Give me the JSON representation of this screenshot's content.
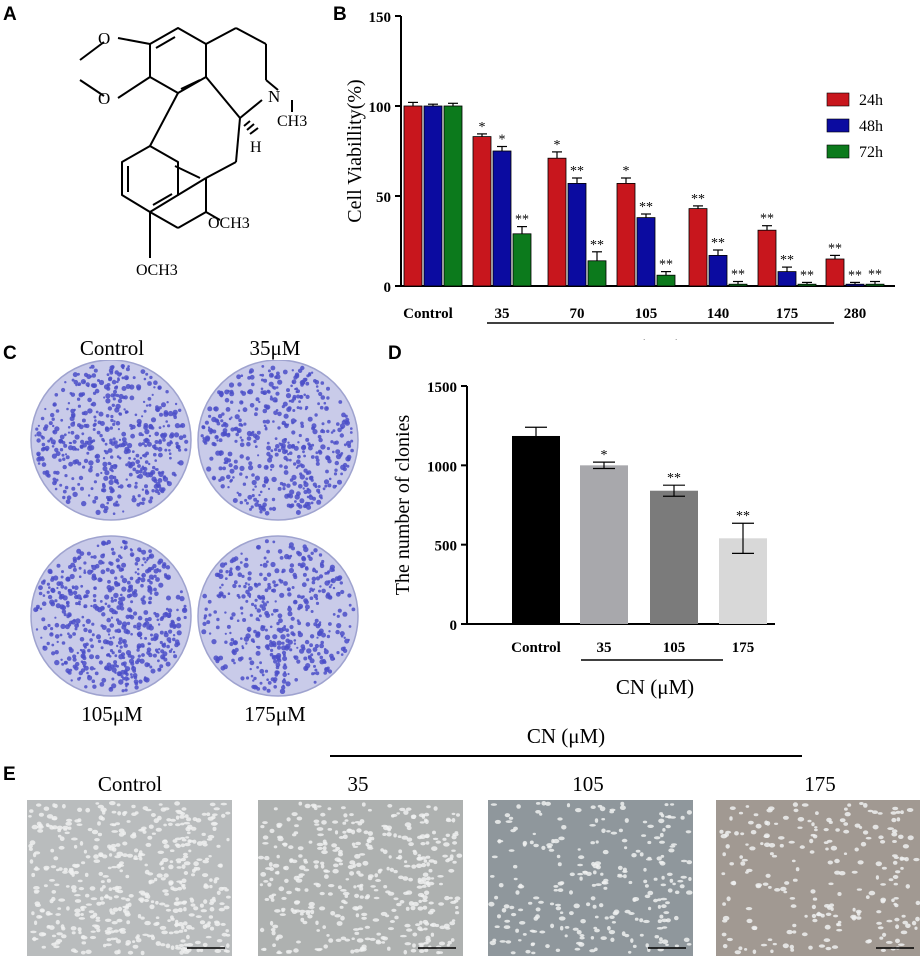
{
  "panels": {
    "a": {
      "letter": "A"
    },
    "b": {
      "letter": "B"
    },
    "c": {
      "letter": "C"
    },
    "d": {
      "letter": "D"
    },
    "e": {
      "letter": "E"
    }
  },
  "structure": {
    "labels": [
      "N",
      "CH3",
      "H",
      "OCH3",
      "OCH3",
      "O",
      "O"
    ]
  },
  "colors": {
    "h24": "#c8161d",
    "h48": "#0b0ba0",
    "h72": "#0c7a1c",
    "bar_control": "#000000",
    "bar_35": "#a8a8ac",
    "bar_105": "#7b7b7b",
    "bar_175": "#d8d8d8",
    "crystal_violet": "#4b4fc8"
  },
  "chart_data": [
    {
      "type": "bar",
      "panel": "B",
      "title": "",
      "ylabel": "Cell Viabillity(%)",
      "xlabel": "CN (μM)",
      "ylim": [
        0,
        150
      ],
      "yticks": [
        0,
        50,
        100,
        150
      ],
      "categories": [
        "Control",
        "35",
        "70",
        "105",
        "140",
        "175",
        "280"
      ],
      "legend_position": "top-right",
      "series": [
        {
          "name": "24h",
          "values": [
            100,
            83,
            71,
            57,
            43,
            31,
            15
          ],
          "errors": [
            2,
            1.5,
            3.5,
            3,
            1.5,
            2.5,
            2
          ],
          "sig": [
            "",
            "*",
            "*",
            "*",
            "**",
            "**",
            "**"
          ]
        },
        {
          "name": "48h",
          "values": [
            100,
            75,
            57,
            38,
            17,
            8,
            1
          ],
          "errors": [
            1,
            2.5,
            3,
            2,
            3,
            2.5,
            1
          ],
          "sig": [
            "",
            "*",
            "**",
            "**",
            "**",
            "**",
            "**"
          ]
        },
        {
          "name": "72h",
          "values": [
            100,
            29,
            14,
            6,
            1,
            1,
            1
          ],
          "errors": [
            1.5,
            4,
            5,
            2,
            1.5,
            1,
            1.5
          ],
          "sig": [
            "",
            "**",
            "**",
            "**",
            "**",
            "**",
            "**"
          ]
        }
      ]
    },
    {
      "type": "bar",
      "panel": "D",
      "title": "",
      "ylabel": "The number of clonies",
      "xlabel": "CN (μM)",
      "ylim": [
        0,
        1500
      ],
      "yticks": [
        0,
        500,
        1000,
        1500
      ],
      "categories": [
        "Control",
        "35",
        "105",
        "175"
      ],
      "values": [
        1185,
        1000,
        840,
        540
      ],
      "errors": [
        55,
        20,
        35,
        95
      ],
      "sig": [
        "",
        "*",
        "**",
        "**"
      ]
    }
  ],
  "panel_c": {
    "plates": [
      {
        "label": "Control"
      },
      {
        "label": "35μM"
      },
      {
        "label": "105μM"
      },
      {
        "label": "175μM"
      }
    ]
  },
  "panel_e": {
    "group_label": "CN (μM)",
    "images": [
      {
        "label": "Control"
      },
      {
        "label": "35"
      },
      {
        "label": "105"
      },
      {
        "label": "175"
      }
    ]
  }
}
